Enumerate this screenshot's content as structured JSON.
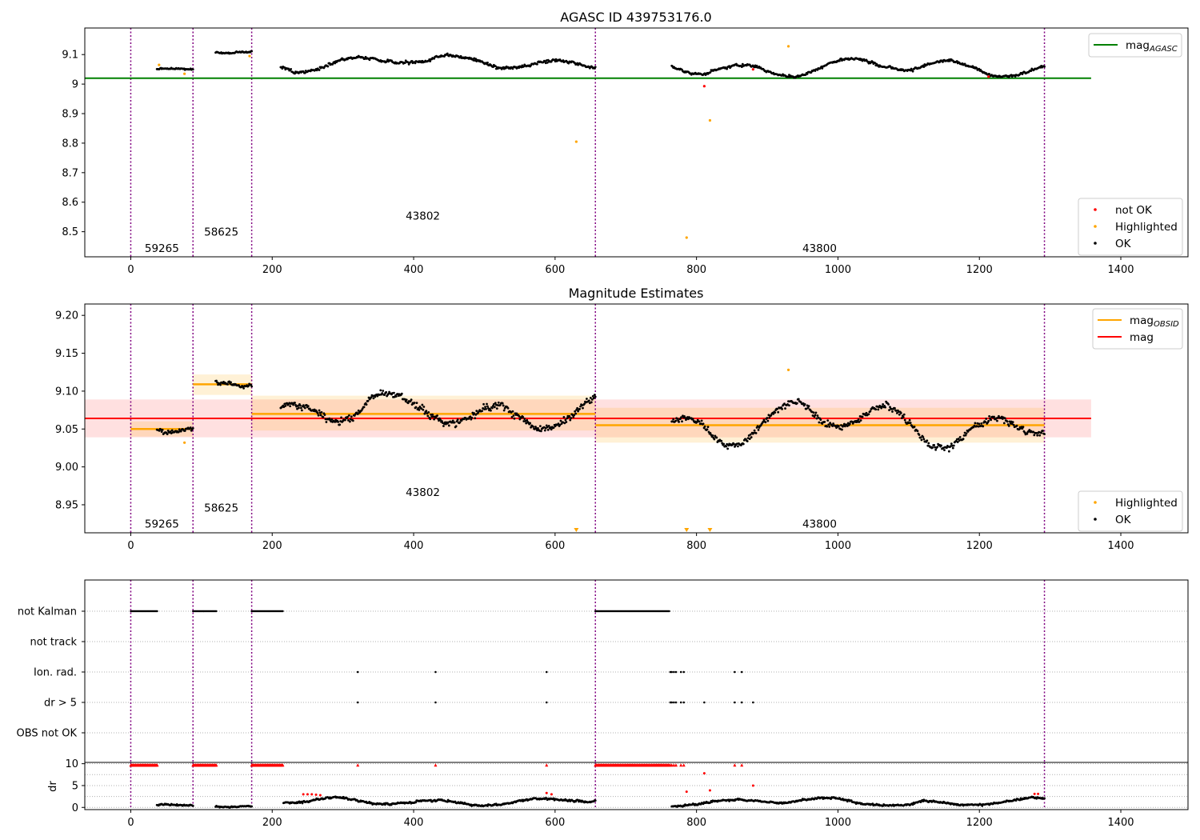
{
  "chart_data": [
    {
      "id": "top",
      "type": "scatter",
      "title": "AGASC ID 439753176.0",
      "xlim": [
        -65,
        1495
      ],
      "ylim": [
        8.415,
        9.19
      ],
      "xticks": [
        0,
        200,
        400,
        600,
        800,
        1000,
        1200,
        1400
      ],
      "yticks": [
        8.5,
        8.6,
        8.7,
        8.8,
        8.9,
        9.0,
        9.1
      ],
      "obs_boundaries": [
        0,
        88,
        171,
        657,
        1292
      ],
      "obsid_labels": [
        {
          "text": "59265",
          "x": 44,
          "y": 8.445
        },
        {
          "text": "58625",
          "x": 128,
          "y": 8.5
        },
        {
          "text": "43802",
          "x": 413,
          "y": 8.555
        },
        {
          "text": "43800",
          "x": 974,
          "y": 8.445
        }
      ],
      "lines": [
        {
          "name": "mag_AGASC",
          "color": "#008000",
          "x": [
            -65,
            1358
          ],
          "y": [
            9.02,
            9.02
          ]
        }
      ],
      "segments": [
        {
          "x": [
            37,
            88
          ],
          "base": 9.052,
          "amp": 0.004,
          "noise": 0.004,
          "seed": 11
        },
        {
          "x": [
            120,
            171
          ],
          "base": 9.108,
          "amp": 0.004,
          "noise": 0.005,
          "seed": 12
        },
        {
          "x": [
            212,
            657
          ],
          "base": 9.072,
          "amp": 0.022,
          "noise": 0.008,
          "seed": 13
        },
        {
          "x": [
            765,
            1292
          ],
          "base": 9.058,
          "amp": 0.028,
          "noise": 0.007,
          "seed": 14
        }
      ],
      "special_points": [
        {
          "x": 40,
          "y": 9.065,
          "class": "Highlighted"
        },
        {
          "x": 76,
          "y": 9.035,
          "class": "Highlighted"
        },
        {
          "x": 168,
          "y": 9.095,
          "class": "Highlighted"
        },
        {
          "x": 630,
          "y": 8.805,
          "class": "Highlighted"
        },
        {
          "x": 786,
          "y": 8.48,
          "class": "Highlighted"
        },
        {
          "x": 819,
          "y": 8.877,
          "class": "Highlighted"
        },
        {
          "x": 930,
          "y": 9.128,
          "class": "Highlighted"
        },
        {
          "x": 811,
          "y": 8.993,
          "class": "not OK"
        },
        {
          "x": 880,
          "y": 9.05,
          "class": "not OK"
        },
        {
          "x": 1213,
          "y": 9.025,
          "class": "not OK"
        }
      ],
      "legend_top": {
        "position": "upper right",
        "entries": [
          {
            "label": "mag",
            "sub": "AGASC",
            "color": "#008000",
            "kind": "line"
          }
        ]
      },
      "legend_bottom": {
        "position": "lower right",
        "entries": [
          {
            "label": "not OK",
            "color": "#ff0000",
            "kind": "dot"
          },
          {
            "label": "Highlighted",
            "color": "#ffa500",
            "kind": "dot"
          },
          {
            "label": "OK",
            "color": "#000000",
            "kind": "dot"
          }
        ]
      }
    },
    {
      "id": "middle",
      "type": "scatter",
      "title": "Magnitude Estimates",
      "xlim": [
        -65,
        1495
      ],
      "ylim": [
        8.913,
        9.215
      ],
      "xticks": [
        0,
        200,
        400,
        600,
        800,
        1000,
        1200,
        1400
      ],
      "yticks": [
        8.95,
        9.0,
        9.05,
        9.1,
        9.15,
        9.2
      ],
      "obs_boundaries": [
        0,
        88,
        171,
        657,
        1292
      ],
      "obsid_labels": [
        {
          "text": "59265",
          "x": 44,
          "y": 8.925
        },
        {
          "text": "58625",
          "x": 128,
          "y": 8.946
        },
        {
          "text": "43802",
          "x": 413,
          "y": 8.967
        },
        {
          "text": "43800",
          "x": 974,
          "y": 8.925
        }
      ],
      "mag": {
        "value": 9.064,
        "band": [
          9.039,
          9.089
        ],
        "x": [
          -65,
          1358
        ],
        "color": "#ff0000"
      },
      "mag_obsid": [
        {
          "x": [
            0,
            88
          ],
          "value": 9.05,
          "band": [
            9.04,
            9.06
          ]
        },
        {
          "x": [
            88,
            171
          ],
          "value": 9.109,
          "band": [
            9.095,
            9.122
          ]
        },
        {
          "x": [
            171,
            657
          ],
          "value": 9.07,
          "band": [
            9.048,
            9.094
          ]
        },
        {
          "x": [
            657,
            1292
          ],
          "value": 9.055,
          "band": [
            9.032,
            9.078
          ]
        }
      ],
      "segments": [
        {
          "x": [
            37,
            88
          ],
          "base": 9.052,
          "amp": 0.004,
          "noise": 0.004,
          "seed": 21
        },
        {
          "x": [
            120,
            171
          ],
          "base": 9.108,
          "amp": 0.006,
          "noise": 0.005,
          "seed": 22
        },
        {
          "x": [
            212,
            657
          ],
          "base": 9.072,
          "amp": 0.022,
          "noise": 0.008,
          "seed": 23
        },
        {
          "x": [
            765,
            1292
          ],
          "base": 9.058,
          "amp": 0.028,
          "noise": 0.007,
          "seed": 24
        }
      ],
      "special_points": [
        {
          "x": 76,
          "y": 9.032,
          "class": "Highlighted"
        },
        {
          "x": 930,
          "y": 9.128,
          "class": "Highlighted"
        }
      ],
      "offscale_markers": [
        630,
        786,
        819
      ],
      "legend_top": {
        "position": "upper right",
        "entries": [
          {
            "label": "mag",
            "sub": "OBSID",
            "color": "#ffa500",
            "kind": "line"
          },
          {
            "label": "mag",
            "sub": "",
            "color": "#ff0000",
            "kind": "line"
          }
        ]
      },
      "legend_bottom": {
        "position": "lower right",
        "entries": [
          {
            "label": "Highlighted",
            "color": "#ffa500",
            "kind": "dot"
          },
          {
            "label": "OK",
            "color": "#000000",
            "kind": "dot"
          }
        ]
      }
    },
    {
      "id": "flags",
      "type": "scatter",
      "xlim": [
        -65,
        1495
      ],
      "categories": [
        "not Kalman",
        "not track",
        "Ion. rad.",
        "dr > 5",
        "OBS not OK"
      ],
      "obs_boundaries": [
        0,
        88,
        171,
        657,
        1292
      ],
      "flags": {
        "not Kalman": {
          "ranges": [
            [
              0,
              38
            ],
            [
              88,
              122
            ],
            [
              171,
              216
            ],
            [
              657,
              762
            ]
          ],
          "points": []
        },
        "not track": {
          "ranges": [],
          "points": []
        },
        "Ion. rad.": {
          "ranges": [],
          "points": [
            321,
            431,
            588,
            763,
            765,
            768,
            771,
            778,
            782,
            854,
            864
          ]
        },
        "dr > 5": {
          "ranges": [],
          "points": [
            321,
            431,
            588,
            763,
            765,
            768,
            771,
            778,
            782,
            811,
            854,
            864,
            880
          ]
        },
        "OBS not OK": {
          "ranges": [],
          "points": []
        }
      }
    },
    {
      "id": "dr",
      "type": "scatter",
      "ylabel": "dr",
      "xlim": [
        -65,
        1495
      ],
      "ylim": [
        -0.5,
        10.3
      ],
      "xticks": [
        0,
        200,
        400,
        600,
        800,
        1000,
        1200,
        1400
      ],
      "yticks": [
        0,
        5,
        10
      ],
      "obs_boundaries": [
        0,
        88,
        171,
        657,
        1292
      ],
      "clipped_ranges": [
        [
          0,
          38
        ],
        [
          88,
          122
        ],
        [
          171,
          216
        ],
        [
          657,
          762
        ]
      ],
      "clipped_points": [
        321,
        431,
        588,
        763,
        765,
        768,
        771,
        778,
        782,
        854,
        864
      ],
      "segments": [
        {
          "x": [
            37,
            88
          ],
          "base": 0.4,
          "amp": 0.3,
          "noise": 0.3,
          "seed": 31
        },
        {
          "x": [
            120,
            171
          ],
          "base": 0.3,
          "amp": 0.2,
          "noise": 0.2,
          "seed": 32
        },
        {
          "x": [
            216,
            657
          ],
          "base": 1.4,
          "amp": 0.7,
          "noise": 0.35,
          "seed": 33
        },
        {
          "x": [
            765,
            1292
          ],
          "base": 1.3,
          "amp": 0.8,
          "noise": 0.35,
          "seed": 34
        }
      ],
      "red_points": [
        {
          "x": 244,
          "y": 3.0
        },
        {
          "x": 250,
          "y": 3.0
        },
        {
          "x": 256,
          "y": 3.0
        },
        {
          "x": 262,
          "y": 2.9
        },
        {
          "x": 268,
          "y": 2.8
        },
        {
          "x": 588,
          "y": 3.3
        },
        {
          "x": 595,
          "y": 3.0
        },
        {
          "x": 786,
          "y": 3.6
        },
        {
          "x": 811,
          "y": 7.8
        },
        {
          "x": 819,
          "y": 3.9
        },
        {
          "x": 880,
          "y": 5.0
        },
        {
          "x": 1278,
          "y": 3.1
        },
        {
          "x": 1283,
          "y": 3.1
        }
      ]
    }
  ]
}
